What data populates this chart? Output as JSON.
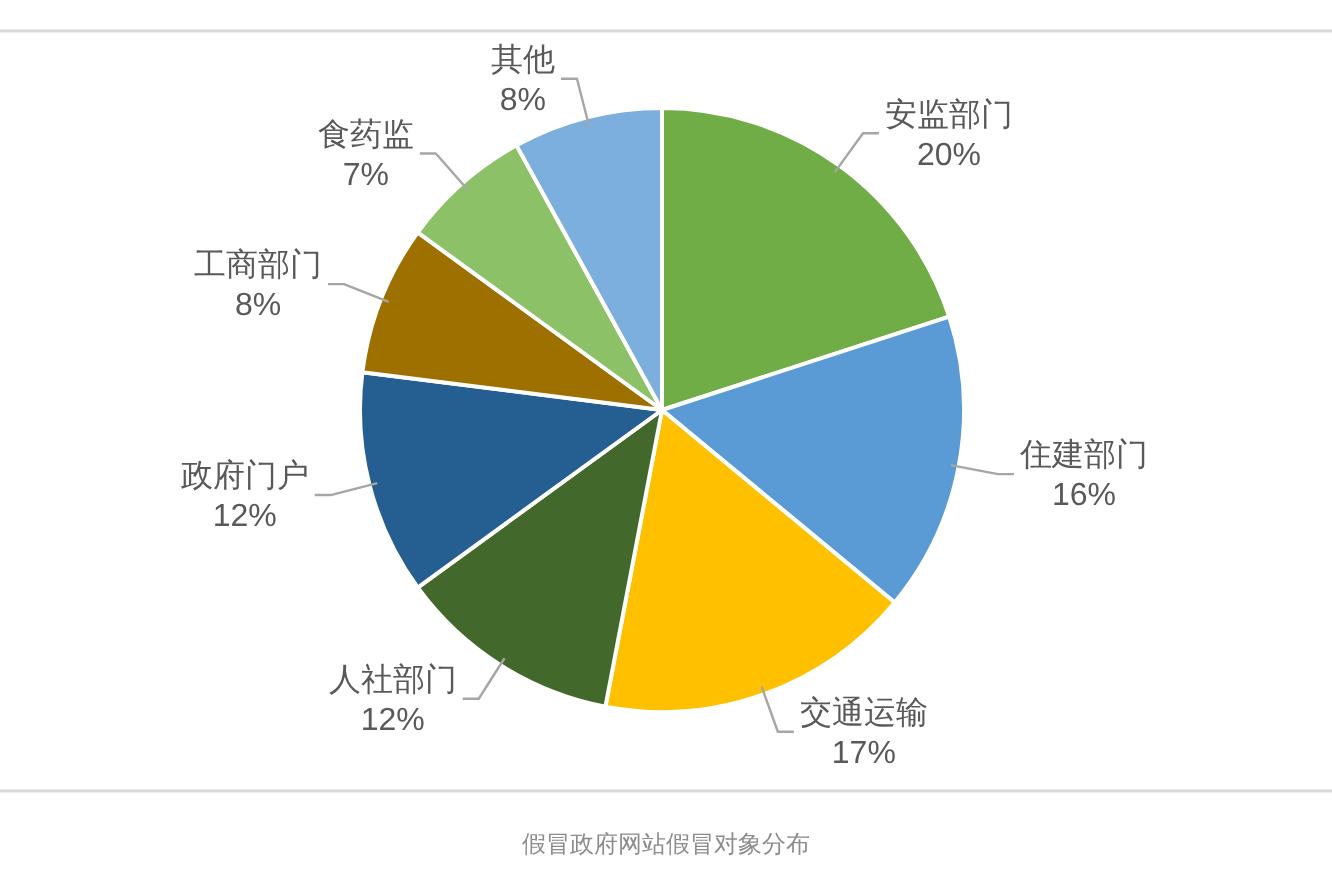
{
  "chart_data": {
    "type": "pie",
    "categories": [
      "安监部门",
      "住建部门",
      "交通运输",
      "人社部门",
      "政府门户",
      "工商部门",
      "食药监",
      "其他"
    ],
    "values": [
      20,
      16,
      17,
      12,
      12,
      8,
      7,
      8
    ],
    "colors": [
      "#70ad47",
      "#5b9bd5",
      "#ffc000",
      "#43682b",
      "#255e91",
      "#9e7000",
      "#8cc168",
      "#7cafdd"
    ],
    "value_labels": [
      "20%",
      "16%",
      "17%",
      "12%",
      "12%",
      "8%",
      "7%",
      "8%"
    ],
    "annotations": [
      "假冒政府网站假冒对象分布"
    ]
  }
}
